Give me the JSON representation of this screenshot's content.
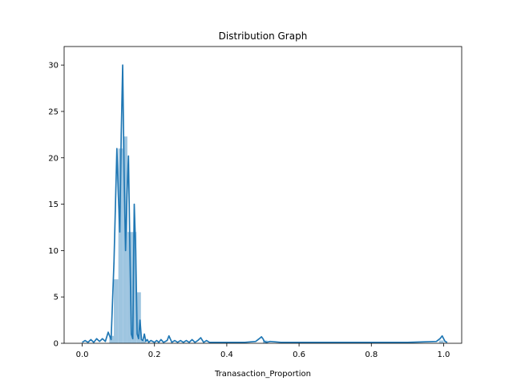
{
  "chart_data": {
    "type": "histogram+line",
    "title": "Distribution Graph",
    "xlabel": "Tranasaction_Proportion",
    "ylabel": "",
    "xlim": [
      -0.05,
      1.05
    ],
    "ylim": [
      0,
      32
    ],
    "xticks": [
      0.0,
      0.2,
      0.4,
      0.6,
      0.8,
      1.0
    ],
    "xtick_labels": [
      "0.0",
      "0.2",
      "0.4",
      "0.6",
      "0.8",
      "1.0"
    ],
    "yticks": [
      0,
      5,
      10,
      15,
      20,
      25,
      30
    ],
    "ytick_labels": [
      "0",
      "5",
      "10",
      "15",
      "20",
      "25",
      "30"
    ],
    "grid": false,
    "legend": "none",
    "colors": {
      "line": "#1f77b4",
      "bars": "#9ec5e0",
      "axes": "#000000"
    },
    "histogram": {
      "bin_width": 0.0125,
      "bins": [
        {
          "x0": 0.075,
          "value": 0.8
        },
        {
          "x0": 0.0875,
          "value": 6.9
        },
        {
          "x0": 0.1,
          "value": 21.0
        },
        {
          "x0": 0.1125,
          "value": 22.3
        },
        {
          "x0": 0.125,
          "value": 12.0
        },
        {
          "x0": 0.1375,
          "value": 12.0
        },
        {
          "x0": 0.15,
          "value": 5.5
        },
        {
          "x0": 0.1625,
          "value": 0.3
        },
        {
          "x0": 0.5,
          "value": 0.3
        },
        {
          "x0": 0.9875,
          "value": 0.3
        }
      ]
    },
    "series": [
      {
        "type": "line",
        "x": [
          0.0,
          0.008,
          0.016,
          0.024,
          0.032,
          0.04,
          0.048,
          0.056,
          0.064,
          0.072,
          0.08,
          0.088,
          0.096,
          0.1,
          0.104,
          0.108,
          0.112,
          0.116,
          0.12,
          0.124,
          0.128,
          0.132,
          0.136,
          0.14,
          0.144,
          0.148,
          0.152,
          0.156,
          0.16,
          0.164,
          0.168,
          0.172,
          0.176,
          0.18,
          0.184,
          0.19,
          0.2,
          0.206,
          0.212,
          0.218,
          0.225,
          0.235,
          0.24,
          0.248,
          0.256,
          0.264,
          0.272,
          0.28,
          0.288,
          0.296,
          0.304,
          0.312,
          0.32,
          0.328,
          0.336,
          0.344,
          0.352,
          0.36,
          0.4,
          0.45,
          0.48,
          0.49,
          0.496,
          0.5,
          0.504,
          0.51,
          0.52,
          0.55,
          0.6,
          0.7,
          0.8,
          0.9,
          0.98,
          0.99,
          0.996,
          1.0,
          1.004,
          1.01
        ],
        "y": [
          0.1,
          0.3,
          0.1,
          0.4,
          0.1,
          0.5,
          0.2,
          0.5,
          0.2,
          1.2,
          0.4,
          8.8,
          21.0,
          16.0,
          12.0,
          22.5,
          30.0,
          18.0,
          10.0,
          16.0,
          20.2,
          10.0,
          1.0,
          0.5,
          15.0,
          10.0,
          1.0,
          0.5,
          2.5,
          0.4,
          0.3,
          1.0,
          0.2,
          0.4,
          0.1,
          0.3,
          0.1,
          0.3,
          0.1,
          0.4,
          0.1,
          0.3,
          0.8,
          0.1,
          0.3,
          0.1,
          0.3,
          0.1,
          0.3,
          0.1,
          0.4,
          0.1,
          0.3,
          0.6,
          0.1,
          0.3,
          0.1,
          0.1,
          0.1,
          0.1,
          0.2,
          0.5,
          0.7,
          0.5,
          0.2,
          0.1,
          0.2,
          0.1,
          0.1,
          0.1,
          0.1,
          0.1,
          0.2,
          0.5,
          0.8,
          0.5,
          0.2,
          0.1
        ]
      }
    ]
  }
}
